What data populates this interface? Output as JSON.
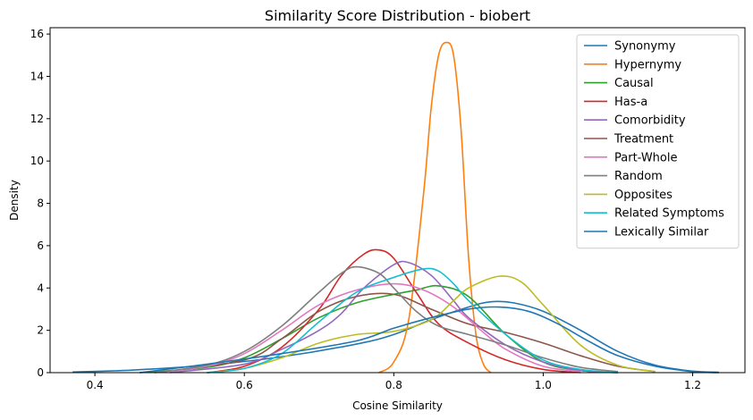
{
  "chart_data": {
    "type": "line",
    "title": "Similarity Score Distribution - biobert",
    "xlabel": "Cosine Similarity",
    "ylabel": "Density",
    "xlim": [
      0.34,
      1.27
    ],
    "ylim": [
      0,
      16.3
    ],
    "xticks": [
      0.4,
      0.6,
      0.8,
      1.0,
      1.2
    ],
    "xtick_labels": [
      "0.4",
      "0.6",
      "0.8",
      "1.0",
      "1.2"
    ],
    "yticks": [
      0,
      2,
      4,
      6,
      8,
      10,
      12,
      14,
      16
    ],
    "ytick_labels": [
      "0",
      "2",
      "4",
      "6",
      "8",
      "10",
      "12",
      "14",
      "16"
    ],
    "grid": false,
    "legend_position": "top-right",
    "series": [
      {
        "name": "Synonymy",
        "color": "#1f77b4",
        "x": [
          0.37,
          0.45,
          0.55,
          0.65,
          0.75,
          0.8,
          0.85,
          0.9,
          0.93,
          0.96,
          1.0,
          1.05,
          1.1,
          1.15,
          1.2,
          1.235
        ],
        "y": [
          0.03,
          0.12,
          0.35,
          0.75,
          1.35,
          1.8,
          2.5,
          3.1,
          3.35,
          3.3,
          2.9,
          2.0,
          1.0,
          0.35,
          0.07,
          0.02
        ]
      },
      {
        "name": "Hypernymy",
        "color": "#ff7f0e",
        "x": [
          0.78,
          0.8,
          0.82,
          0.84,
          0.85,
          0.86,
          0.87,
          0.88,
          0.89,
          0.9,
          0.91,
          0.92,
          0.93
        ],
        "y": [
          0.0,
          0.5,
          2.5,
          8.5,
          12.5,
          15.0,
          15.6,
          15.0,
          11.5,
          5.5,
          1.8,
          0.4,
          0.0
        ]
      },
      {
        "name": "Causal",
        "color": "#2ca02c",
        "x": [
          0.46,
          0.55,
          0.6,
          0.65,
          0.7,
          0.75,
          0.8,
          0.83,
          0.86,
          0.9,
          0.95,
          1.0,
          1.05,
          1.1
        ],
        "y": [
          0.0,
          0.25,
          0.7,
          1.6,
          2.6,
          3.3,
          3.7,
          3.9,
          4.1,
          3.6,
          1.8,
          0.5,
          0.1,
          0.0
        ]
      },
      {
        "name": "Has-a",
        "color": "#d62728",
        "x": [
          0.55,
          0.6,
          0.65,
          0.7,
          0.73,
          0.76,
          0.78,
          0.8,
          0.83,
          0.86,
          0.9,
          0.95,
          1.0,
          1.05
        ],
        "y": [
          0.0,
          0.3,
          1.2,
          3.0,
          4.6,
          5.6,
          5.8,
          5.4,
          3.8,
          2.3,
          1.4,
          0.6,
          0.15,
          0.0
        ]
      },
      {
        "name": "Comorbidity",
        "color": "#9467bd",
        "x": [
          0.5,
          0.6,
          0.65,
          0.7,
          0.73,
          0.76,
          0.8,
          0.82,
          0.85,
          0.88,
          0.9,
          0.95,
          1.0,
          1.05,
          1.1
        ],
        "y": [
          0.0,
          0.4,
          1.1,
          2.0,
          2.8,
          4.0,
          5.1,
          5.2,
          4.6,
          3.4,
          2.6,
          1.3,
          0.5,
          0.1,
          0.0
        ]
      },
      {
        "name": "Treatment",
        "color": "#8c564b",
        "x": [
          0.48,
          0.6,
          0.65,
          0.7,
          0.75,
          0.8,
          0.85,
          0.9,
          0.95,
          1.0,
          1.05,
          1.1,
          1.15
        ],
        "y": [
          0.0,
          0.6,
          1.6,
          2.9,
          3.6,
          3.7,
          3.0,
          2.3,
          1.9,
          1.4,
          0.8,
          0.3,
          0.05
        ]
      },
      {
        "name": "Part-Whole",
        "color": "#e377c2",
        "x": [
          0.48,
          0.55,
          0.6,
          0.65,
          0.7,
          0.75,
          0.8,
          0.84,
          0.88,
          0.92,
          0.95,
          1.0,
          1.05
        ],
        "y": [
          0.0,
          0.3,
          0.9,
          2.0,
          3.2,
          3.9,
          4.2,
          3.9,
          3.1,
          1.9,
          1.1,
          0.3,
          0.05
        ]
      },
      {
        "name": "Random",
        "color": "#7f7f7f",
        "x": [
          0.48,
          0.55,
          0.6,
          0.65,
          0.7,
          0.73,
          0.75,
          0.78,
          0.8,
          0.83,
          0.86,
          0.9,
          0.95,
          1.0,
          1.05,
          1.1
        ],
        "y": [
          0.0,
          0.35,
          1.0,
          2.2,
          3.8,
          4.7,
          5.0,
          4.7,
          4.0,
          2.9,
          2.2,
          1.8,
          1.3,
          0.7,
          0.25,
          0.05
        ]
      },
      {
        "name": "Opposites",
        "color": "#bcbd22",
        "x": [
          0.55,
          0.6,
          0.65,
          0.7,
          0.75,
          0.8,
          0.85,
          0.88,
          0.9,
          0.94,
          0.97,
          1.0,
          1.05,
          1.1,
          1.15
        ],
        "y": [
          0.0,
          0.2,
          0.7,
          1.4,
          1.8,
          1.95,
          2.5,
          3.4,
          4.0,
          4.55,
          4.3,
          3.2,
          1.3,
          0.35,
          0.05
        ]
      },
      {
        "name": "Related Symptoms",
        "color": "#17becf",
        "x": [
          0.55,
          0.6,
          0.65,
          0.7,
          0.75,
          0.8,
          0.84,
          0.86,
          0.88,
          0.9,
          0.95,
          1.0,
          1.05,
          1.1
        ],
        "y": [
          0.0,
          0.2,
          0.9,
          2.4,
          3.8,
          4.5,
          4.9,
          4.8,
          4.2,
          3.4,
          1.8,
          0.6,
          0.15,
          0.0
        ]
      },
      {
        "name": "Lexically Similar",
        "color": "#1f77b4",
        "x": [
          0.46,
          0.55,
          0.65,
          0.75,
          0.8,
          0.85,
          0.9,
          0.94,
          0.98,
          1.02,
          1.06,
          1.1,
          1.15,
          1.2,
          1.235
        ],
        "y": [
          0.0,
          0.4,
          0.9,
          1.5,
          2.1,
          2.6,
          3.0,
          3.1,
          2.9,
          2.3,
          1.5,
          0.8,
          0.3,
          0.05,
          0.0
        ]
      }
    ]
  }
}
